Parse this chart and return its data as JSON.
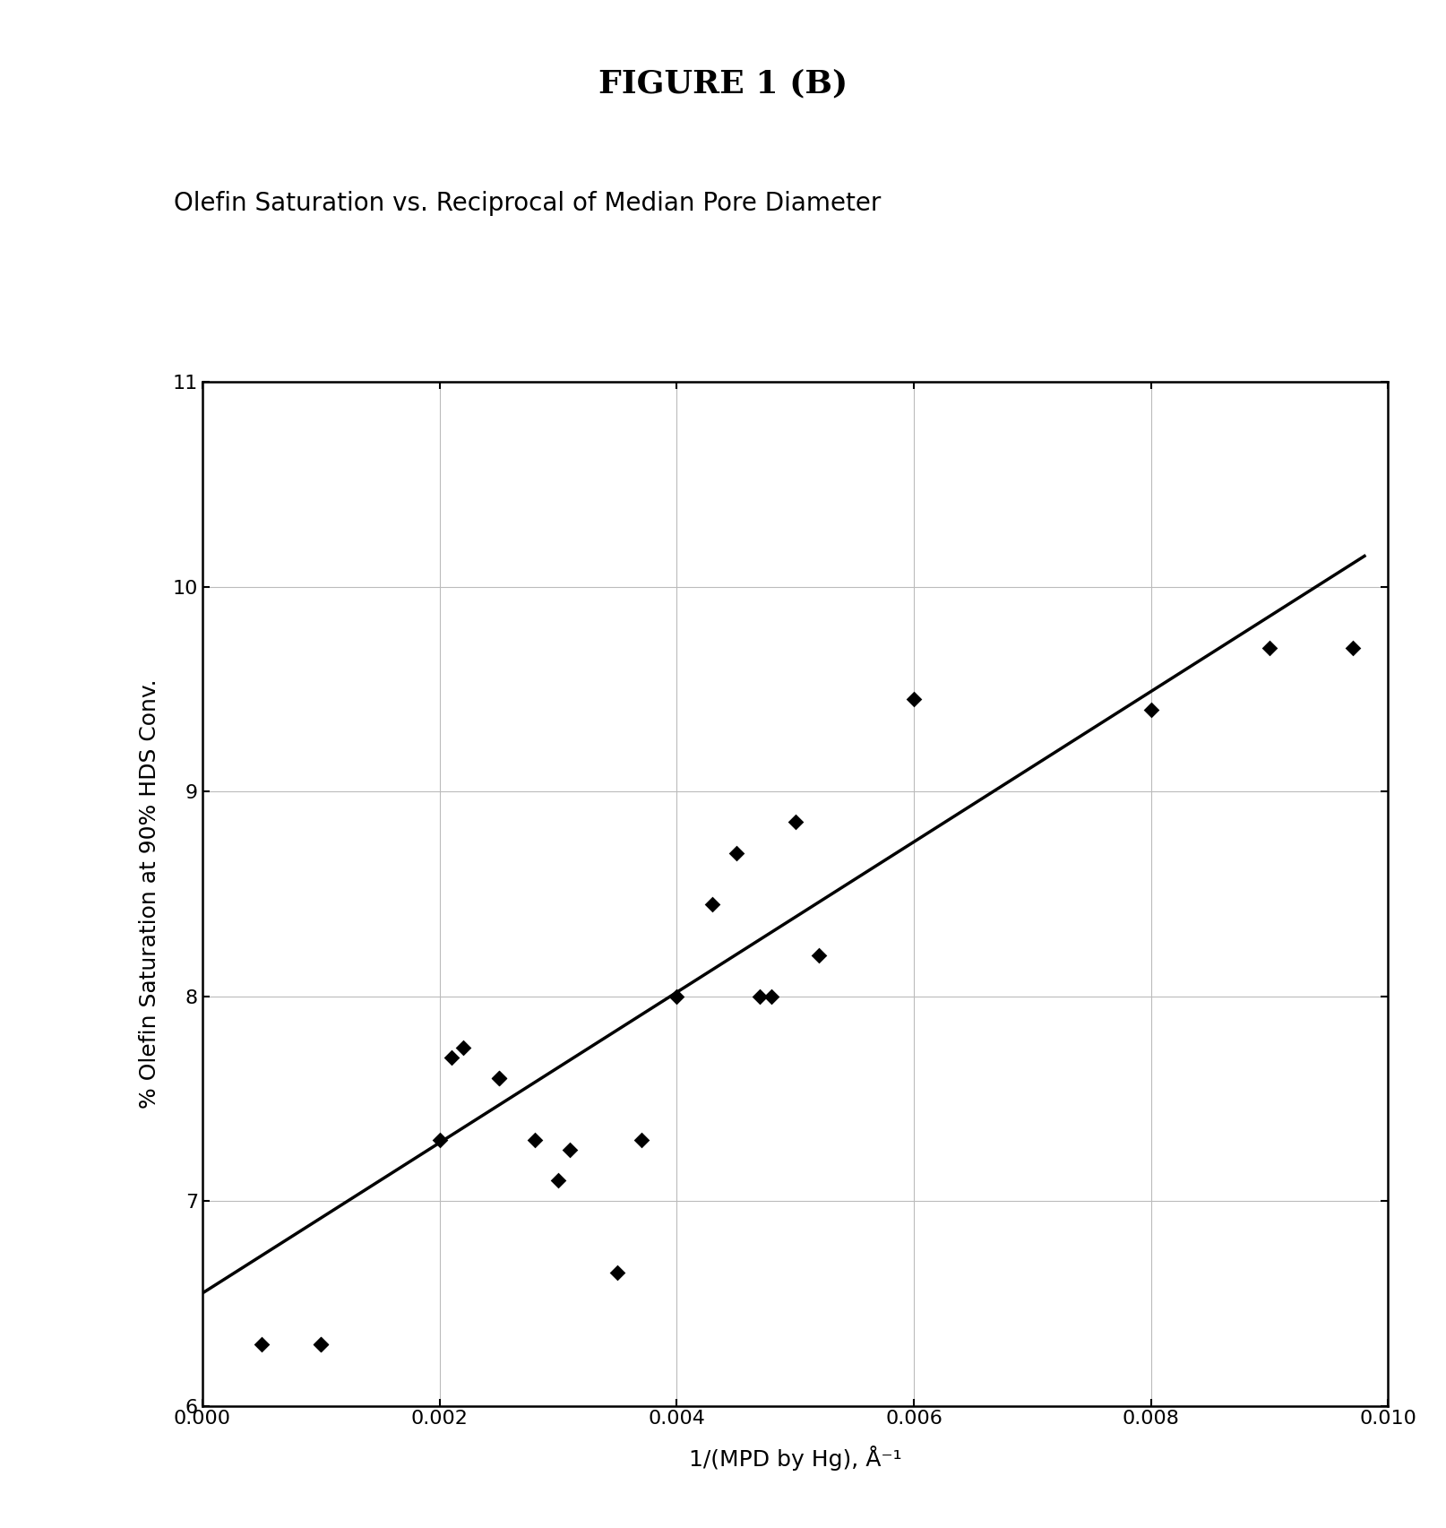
{
  "title": "FIGURE 1 (B)",
  "subtitle": "Olefin Saturation vs. Reciprocal of Median Pore Diameter",
  "xlabel": "1/(MPD by Hg), Å⁻¹",
  "ylabel": "% Olefin Saturation at 90% HDS Conv.",
  "xlim": [
    0.0,
    0.01
  ],
  "ylim": [
    6,
    11
  ],
  "xticks": [
    0.0,
    0.002,
    0.004,
    0.006,
    0.008,
    0.01
  ],
  "yticks": [
    6,
    7,
    8,
    9,
    10,
    11
  ],
  "data_x": [
    0.0005,
    0.001,
    0.001,
    0.002,
    0.0021,
    0.0022,
    0.0025,
    0.0025,
    0.0028,
    0.003,
    0.0031,
    0.0035,
    0.0037,
    0.004,
    0.0043,
    0.0045,
    0.0047,
    0.0048,
    0.005,
    0.0052,
    0.006,
    0.008,
    0.009,
    0.0097
  ],
  "data_y": [
    6.3,
    6.3,
    6.3,
    7.3,
    7.7,
    7.75,
    7.6,
    7.6,
    7.3,
    7.1,
    7.25,
    6.65,
    7.3,
    8.0,
    8.45,
    8.7,
    8.0,
    8.0,
    8.85,
    8.2,
    9.45,
    9.4,
    9.7,
    9.7
  ],
  "trendline_x": [
    0.0,
    0.0098
  ],
  "trendline_y": [
    6.55,
    10.15
  ],
  "marker_color": "#000000",
  "line_color": "#000000",
  "marker_size": 9,
  "background_color": "#ffffff",
  "title_fontsize": 26,
  "subtitle_fontsize": 20,
  "label_fontsize": 18,
  "tick_fontsize": 16
}
